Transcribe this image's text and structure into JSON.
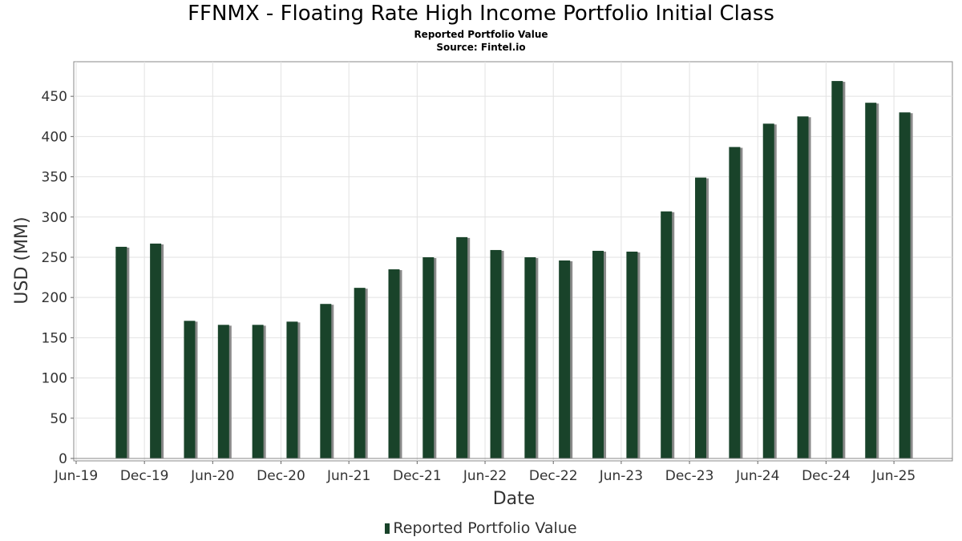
{
  "chart_data": {
    "type": "bar",
    "title": "FFNMX - Floating Rate High Income Portfolio Initial Class",
    "subtitles": [
      "Reported Portfolio Value",
      "Source: Fintel.io"
    ],
    "xlabel": "Date",
    "ylabel": "USD (MM)",
    "x_range": [
      "2019-06-01",
      "2025-08-15"
    ],
    "ylim": [
      0,
      490
    ],
    "y_ticks": [
      0,
      50,
      100,
      150,
      200,
      250,
      300,
      350,
      400,
      450
    ],
    "x_ticks": [
      {
        "label": "Jun-19",
        "date": "2019-06-01"
      },
      {
        "label": "Dec-19",
        "date": "2019-12-01"
      },
      {
        "label": "Jun-20",
        "date": "2020-06-01"
      },
      {
        "label": "Dec-20",
        "date": "2020-12-01"
      },
      {
        "label": "Jun-21",
        "date": "2021-06-01"
      },
      {
        "label": "Dec-21",
        "date": "2021-12-01"
      },
      {
        "label": "Jun-22",
        "date": "2022-06-01"
      },
      {
        "label": "Dec-22",
        "date": "2022-12-01"
      },
      {
        "label": "Jun-23",
        "date": "2023-06-01"
      },
      {
        "label": "Dec-23",
        "date": "2023-12-01"
      },
      {
        "label": "Jun-24",
        "date": "2024-06-01"
      },
      {
        "label": "Dec-24",
        "date": "2024-12-01"
      },
      {
        "label": "Jun-25",
        "date": "2025-06-01"
      }
    ],
    "grid": true,
    "legend": "bottom-center",
    "series": [
      {
        "name": "Reported Portfolio Value",
        "color": "#19432a",
        "shadow_color": "#8a8a8a",
        "points": [
          {
            "date": "2019-09-30",
            "value": 263
          },
          {
            "date": "2019-12-31",
            "value": 267
          },
          {
            "date": "2020-03-31",
            "value": 171
          },
          {
            "date": "2020-06-30",
            "value": 166
          },
          {
            "date": "2020-09-30",
            "value": 166
          },
          {
            "date": "2020-12-31",
            "value": 170
          },
          {
            "date": "2021-03-31",
            "value": 192
          },
          {
            "date": "2021-06-30",
            "value": 212
          },
          {
            "date": "2021-09-30",
            "value": 235
          },
          {
            "date": "2021-12-31",
            "value": 250
          },
          {
            "date": "2022-03-31",
            "value": 275
          },
          {
            "date": "2022-06-30",
            "value": 259
          },
          {
            "date": "2022-09-30",
            "value": 250
          },
          {
            "date": "2022-12-31",
            "value": 246
          },
          {
            "date": "2023-03-31",
            "value": 258
          },
          {
            "date": "2023-06-30",
            "value": 257
          },
          {
            "date": "2023-09-30",
            "value": 307
          },
          {
            "date": "2023-12-31",
            "value": 349
          },
          {
            "date": "2024-03-31",
            "value": 387
          },
          {
            "date": "2024-06-30",
            "value": 416
          },
          {
            "date": "2024-09-30",
            "value": 425
          },
          {
            "date": "2024-12-31",
            "value": 469
          },
          {
            "date": "2025-03-31",
            "value": 442
          },
          {
            "date": "2025-06-30",
            "value": 430
          }
        ]
      }
    ]
  }
}
